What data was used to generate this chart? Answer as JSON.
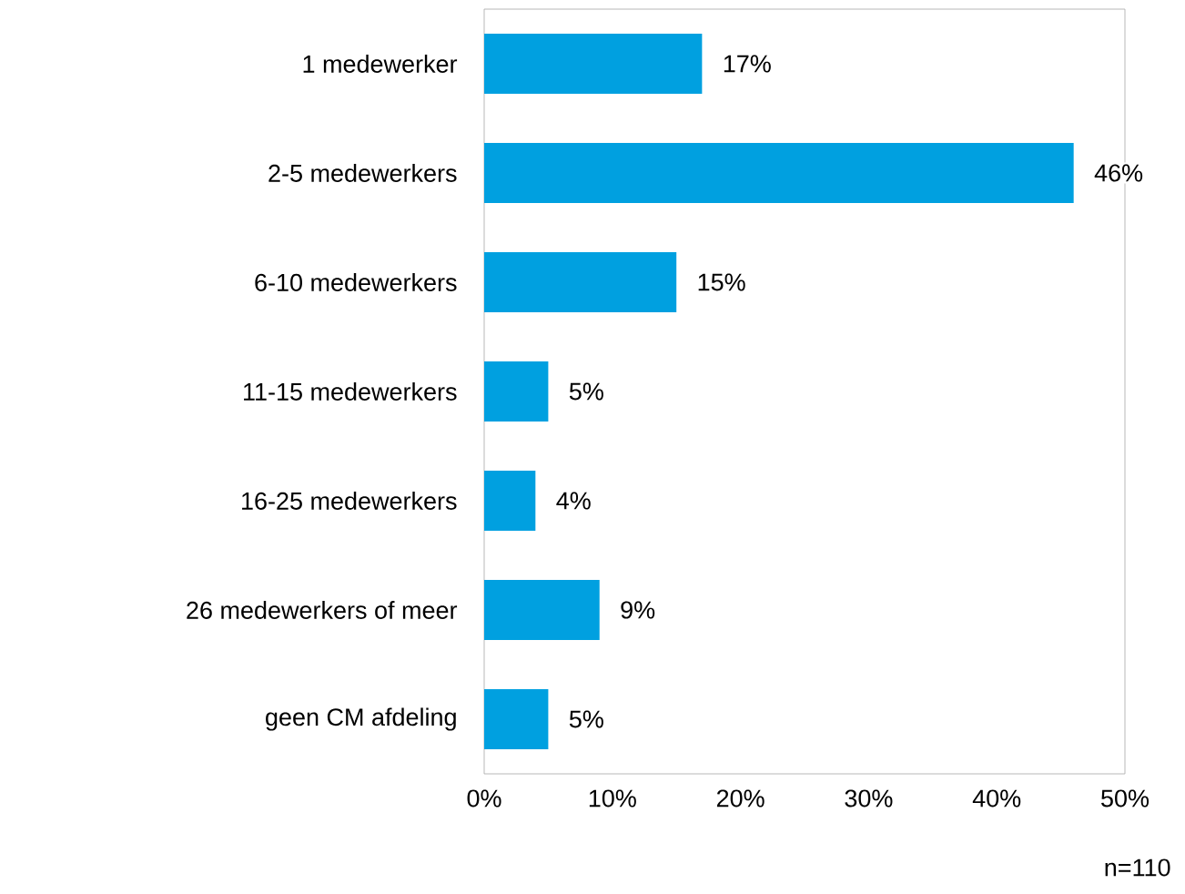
{
  "chart_data": {
    "type": "bar",
    "orientation": "horizontal",
    "categories": [
      "1 medewerker",
      "2-5 medewerkers",
      "6-10 medewerkers",
      "11-15 medewerkers",
      "16-25 medewerkers",
      "26 medewerkers of meer",
      "geen CM afdeling"
    ],
    "values": [
      17,
      46,
      15,
      5,
      4,
      9,
      5
    ],
    "value_labels": [
      "17%",
      "46%",
      "15%",
      "5%",
      "4%",
      "9%",
      "5%"
    ],
    "color": "#00a0e0",
    "xlim": [
      0,
      50
    ],
    "xticks": [
      {
        "value": 0,
        "label": "0%"
      },
      {
        "value": 10,
        "label": "10%"
      },
      {
        "value": 20,
        "label": "20%"
      },
      {
        "value": 30,
        "label": "30%"
      },
      {
        "value": 40,
        "label": "40%"
      },
      {
        "value": 50,
        "label": "50%"
      }
    ],
    "grid": false,
    "annotations": [
      "n=110"
    ]
  }
}
